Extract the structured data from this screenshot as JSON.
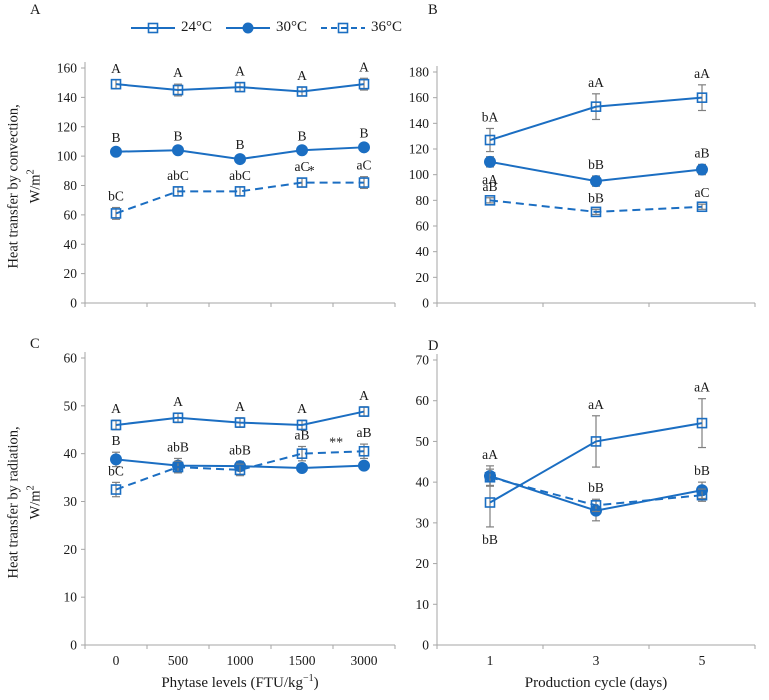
{
  "figure": {
    "colors": {
      "series_blue": "#1b6ec2",
      "error_bar_grey": "#7f7f7f",
      "axis_grey": "#a6a6a6",
      "text": "#1a1a1a"
    },
    "legend": {
      "items": [
        {
          "label": "24°C",
          "marker": "open-square",
          "line": "solid"
        },
        {
          "label": "30°C",
          "marker": "filled-circle",
          "line": "solid"
        },
        {
          "label": "36°C",
          "marker": "open-square",
          "line": "dashed"
        }
      ]
    }
  },
  "chart_data": [
    {
      "panel_label": "A",
      "type": "line",
      "ylabel_line1": "Heat transfer by convection,",
      "ylabel_line2_base": "W/m",
      "ylabel_line2_sup": "2",
      "xlabel_pre": "",
      "xlabel_sup": "",
      "xlabel_post": "",
      "ylim": [
        0,
        160
      ],
      "ytick_step": 20,
      "categories": [
        "0",
        "500",
        "1000",
        "1500",
        "3000"
      ],
      "show_x_tick_labels": false,
      "grid": false,
      "series": [
        {
          "name": "24°C",
          "marker": "open-square",
          "line": "solid",
          "values": [
            149,
            145,
            147,
            144,
            149
          ],
          "errors": [
            3,
            4,
            3,
            3,
            4
          ],
          "point_labels": [
            "A",
            "A",
            "A",
            "A",
            "A"
          ],
          "label_positions": [
            "above",
            "above",
            "above",
            "above",
            "above"
          ]
        },
        {
          "name": "30°C",
          "marker": "filled-circle",
          "line": "solid",
          "values": [
            103,
            104,
            98,
            104,
            106
          ],
          "errors": [
            2,
            2,
            2,
            2,
            2
          ],
          "point_labels": [
            "B",
            "B",
            "B",
            "B",
            "B"
          ],
          "label_positions": [
            "above",
            "above",
            "above",
            "above",
            "above"
          ]
        },
        {
          "name": "36°C",
          "marker": "open-square",
          "line": "dashed",
          "values": [
            61,
            76,
            76,
            82,
            82
          ],
          "errors": [
            4,
            3,
            3,
            3,
            4
          ],
          "point_labels": [
            "bC",
            "abC",
            "abC",
            "aC",
            "aC"
          ],
          "label_positions": [
            "above",
            "above",
            "above",
            "above",
            "above"
          ]
        }
      ],
      "annotations": [
        {
          "text": "*",
          "x_index": 3.15,
          "y": 87
        }
      ]
    },
    {
      "panel_label": "B",
      "type": "line",
      "ylabel_line1": "",
      "ylabel_line2_base": "",
      "ylabel_line2_sup": "",
      "xlabel_pre": "",
      "xlabel_sup": "",
      "xlabel_post": "",
      "ylim": [
        0,
        180
      ],
      "ytick_step": 20,
      "categories": [
        "1",
        "3",
        "5"
      ],
      "show_x_tick_labels": false,
      "grid": false,
      "series": [
        {
          "name": "24°C",
          "marker": "open-square",
          "line": "solid",
          "values": [
            127,
            153,
            160
          ],
          "errors": [
            9,
            10,
            10
          ],
          "point_labels": [
            "bA",
            "aA",
            "aA"
          ],
          "label_positions": [
            "above",
            "above",
            "above"
          ]
        },
        {
          "name": "30°C",
          "marker": "filled-circle",
          "line": "solid",
          "values": [
            110,
            95,
            104
          ],
          "errors": [
            4,
            4,
            4
          ],
          "point_labels": [
            "aA",
            "bB",
            "aB"
          ],
          "label_positions": [
            "below",
            "above",
            "above"
          ]
        },
        {
          "name": "36°C",
          "marker": "open-square",
          "line": "dashed",
          "values": [
            80,
            71,
            75
          ],
          "errors": [
            2,
            2,
            2
          ],
          "point_labels": [
            "aB",
            "bB",
            "aC"
          ],
          "label_positions": [
            "above",
            "above",
            "above"
          ]
        }
      ],
      "annotations": []
    },
    {
      "panel_label": "C",
      "type": "line",
      "ylabel_line1": "Heat transfer by radiation,",
      "ylabel_line2_base": "W/m",
      "ylabel_line2_sup": "2",
      "xlabel_pre": "Phytase levels (FTU/kg",
      "xlabel_sup": "−1",
      "xlabel_post": ")",
      "ylim": [
        0,
        60
      ],
      "ytick_step": 10,
      "categories": [
        "0",
        "500",
        "1000",
        "1500",
        "3000"
      ],
      "show_x_tick_labels": true,
      "grid": false,
      "series": [
        {
          "name": "24°C",
          "marker": "open-square",
          "line": "solid",
          "values": [
            46,
            47.5,
            46.5,
            46,
            48.8
          ],
          "errors": [
            1,
            1,
            1,
            1,
            1
          ],
          "point_labels": [
            "A",
            "A",
            "A",
            "A",
            "A"
          ],
          "label_positions": [
            "above",
            "above",
            "above",
            "above",
            "above"
          ]
        },
        {
          "name": "30°C",
          "marker": "filled-circle",
          "line": "solid",
          "values": [
            38.8,
            37.5,
            37.4,
            37,
            37.5
          ],
          "errors": [
            1.5,
            1.5,
            1,
            0.8,
            0.8
          ],
          "point_labels": [
            "B",
            "abB",
            "abB",
            "",
            ""
          ],
          "label_positions": [
            "above",
            "above",
            "above",
            "above",
            "above"
          ]
        },
        {
          "name": "36°C",
          "marker": "open-square",
          "line": "dashed",
          "values": [
            32.5,
            37.2,
            36.6,
            40,
            40.5
          ],
          "errors": [
            1.5,
            1.2,
            1.2,
            1.5,
            1.5
          ],
          "point_labels": [
            "bC",
            "",
            "",
            "aB",
            "aB"
          ],
          "label_positions": [
            "above",
            "above",
            "above",
            "above",
            "above"
          ]
        }
      ],
      "annotations": [
        {
          "text": "**",
          "x_index": 3.55,
          "y": 41.5
        }
      ]
    },
    {
      "panel_label": "D",
      "type": "line",
      "ylabel_line1": "",
      "ylabel_line2_base": "",
      "ylabel_line2_sup": "",
      "xlabel_pre": "Production cycle (days)",
      "xlabel_sup": "",
      "xlabel_post": "",
      "ylim": [
        0,
        70
      ],
      "ytick_step": 10,
      "categories": [
        "1",
        "3",
        "5"
      ],
      "show_x_tick_labels": true,
      "grid": false,
      "series": [
        {
          "name": "24°C",
          "marker": "open-square",
          "line": "solid",
          "values": [
            35,
            50,
            54.5
          ],
          "errors": [
            6,
            6.3,
            6
          ],
          "point_labels": [
            "bB",
            "aA",
            "aA"
          ],
          "label_positions": [
            "below",
            "above",
            "above"
          ]
        },
        {
          "name": "30°C",
          "marker": "filled-circle",
          "line": "solid",
          "values": [
            41.5,
            33,
            38
          ],
          "errors": [
            2.5,
            2.5,
            2
          ],
          "point_labels": [
            "aA",
            "",
            "bB"
          ],
          "label_positions": [
            "above",
            "above",
            "above"
          ]
        },
        {
          "name": "36°C",
          "marker": "open-square",
          "line": "dashed",
          "values": [
            41.2,
            34.3,
            36.8
          ],
          "errors": [
            2,
            1.5,
            1.5
          ],
          "point_labels": [
            "",
            "bB",
            ""
          ],
          "label_positions": [
            "above",
            "above",
            "above"
          ]
        }
      ],
      "annotations": []
    }
  ]
}
